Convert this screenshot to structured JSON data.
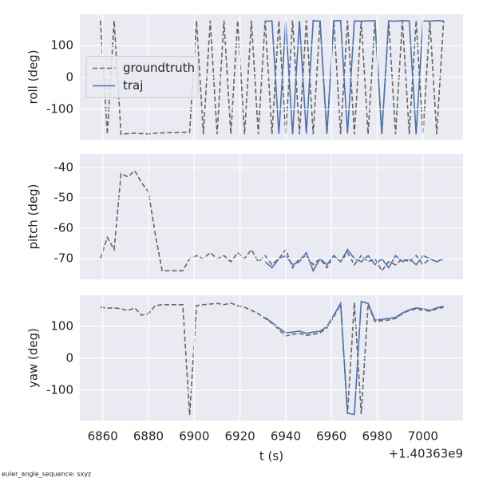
{
  "chart_data": [
    {
      "type": "line",
      "ylabel": "roll (deg)",
      "legend": "center left",
      "grid": true,
      "xlim": [
        6850,
        7017.5
      ],
      "xticks": [
        6860,
        6880,
        6900,
        6920,
        6940,
        6960,
        6980,
        7000
      ],
      "ylim": [
        -195,
        197.5
      ],
      "yticks": [
        -100,
        0,
        100
      ],
      "x": [
        6859,
        6862,
        6865,
        6868,
        6871,
        6874,
        6877,
        6880,
        6883,
        6886,
        6889,
        6892,
        6895,
        6898,
        6901,
        6904,
        6907,
        6910,
        6913,
        6916,
        6919,
        6922,
        6925,
        6928,
        6931,
        6934,
        6937,
        6940,
        6943,
        6946,
        6949,
        6952,
        6955,
        6958,
        6961,
        6964,
        6967,
        6970,
        6973,
        6976,
        6979,
        6982,
        6985,
        6988,
        6991,
        6994,
        6997,
        7000,
        7003,
        7006,
        7009
      ],
      "series": [
        {
          "name": "groundtruth",
          "color": "#666666",
          "linestyle": "dashed",
          "values": [
            178,
            -178,
            178,
            -178,
            -176,
            -175,
            -176,
            -177,
            -175,
            -174,
            -173,
            -173,
            -172,
            -172,
            178,
            -178,
            178,
            -178,
            178,
            -178,
            178,
            -178,
            178,
            -178,
            178,
            -178,
            178,
            -178,
            178,
            -178,
            178,
            -178,
            178,
            -178,
            178,
            -178,
            178,
            -178,
            178,
            -178,
            178,
            -178,
            178,
            -178,
            178,
            -178,
            178,
            -178,
            178,
            -178,
            178
          ]
        },
        {
          "name": "traj",
          "color": "#4c72b0",
          "linestyle": "solid",
          "values": [
            null,
            null,
            null,
            null,
            null,
            null,
            null,
            null,
            null,
            null,
            null,
            null,
            null,
            null,
            null,
            null,
            null,
            null,
            null,
            null,
            null,
            null,
            null,
            null,
            176,
            177,
            -177,
            176,
            -178,
            177,
            -176,
            178,
            176,
            -177,
            177,
            178,
            -176,
            177,
            176,
            177,
            178,
            -177,
            177,
            176,
            178,
            177,
            -178,
            177,
            176,
            178,
            177
          ]
        }
      ]
    },
    {
      "type": "line",
      "ylabel": "pitch (deg)",
      "grid": true,
      "xlim": [
        6850,
        7017.5
      ],
      "xticks": [
        6860,
        6880,
        6900,
        6920,
        6940,
        6960,
        6980,
        7000
      ],
      "ylim": [
        -76.8,
        -35.5
      ],
      "yticks": [
        -70,
        -60,
        -50,
        -40
      ],
      "x": [
        6859,
        6862,
        6865,
        6868,
        6871,
        6874,
        6877,
        6880,
        6883,
        6886,
        6889,
        6892,
        6895,
        6898,
        6901,
        6904,
        6907,
        6910,
        6913,
        6916,
        6919,
        6922,
        6925,
        6928,
        6931,
        6934,
        6937,
        6940,
        6943,
        6946,
        6949,
        6952,
        6955,
        6958,
        6961,
        6964,
        6967,
        6970,
        6973,
        6976,
        6979,
        6982,
        6985,
        6988,
        6991,
        6994,
        6997,
        7000,
        7003,
        7006,
        7009
      ],
      "series": [
        {
          "name": "groundtruth",
          "color": "#666666",
          "linestyle": "dashed",
          "values": [
            -70,
            -63,
            -67,
            -42,
            -43,
            -41,
            -45,
            -48,
            -62,
            -74,
            -74,
            -74,
            -74,
            -70,
            -69,
            -70,
            -68,
            -70,
            -69,
            -71,
            -68,
            -70,
            -67,
            -71,
            -69,
            -72,
            -70,
            -67,
            -73,
            -70,
            -69,
            -72,
            -70,
            -73,
            -69,
            -71,
            -68,
            -72,
            -69,
            -71,
            -70,
            -74,
            -71,
            -72,
            -70,
            -71,
            -69,
            -72,
            -70,
            -71,
            -70
          ]
        },
        {
          "name": "traj",
          "color": "#4c72b0",
          "linestyle": "solid",
          "values": [
            null,
            null,
            null,
            null,
            null,
            null,
            null,
            null,
            null,
            null,
            null,
            null,
            null,
            null,
            null,
            null,
            null,
            null,
            null,
            null,
            null,
            null,
            null,
            null,
            -71,
            -73,
            -70,
            -69,
            -72,
            -71,
            -68,
            -74,
            -70,
            -72,
            -69,
            -71,
            -67,
            -70,
            -71,
            -69,
            -72,
            -70,
            -73,
            -69,
            -71,
            -70,
            -72,
            -69,
            -70,
            -71,
            -70
          ]
        }
      ]
    },
    {
      "type": "line",
      "ylabel": "yaw (deg)",
      "xlabel": "t (s)",
      "x_offset_label": "+1.40363e9",
      "grid": true,
      "xlim": [
        6850,
        7017.5
      ],
      "xticks": [
        6860,
        6880,
        6900,
        6920,
        6940,
        6960,
        6980,
        7000
      ],
      "ylim": [
        -195,
        197.5
      ],
      "yticks": [
        -100,
        0,
        100
      ],
      "x": [
        6859,
        6862,
        6865,
        6868,
        6871,
        6874,
        6877,
        6880,
        6883,
        6886,
        6889,
        6892,
        6895,
        6898,
        6901,
        6904,
        6907,
        6910,
        6913,
        6916,
        6919,
        6922,
        6925,
        6928,
        6931,
        6934,
        6937,
        6940,
        6943,
        6946,
        6949,
        6952,
        6955,
        6958,
        6961,
        6964,
        6967,
        6970,
        6973,
        6976,
        6979,
        6982,
        6985,
        6988,
        6991,
        6994,
        6997,
        7000,
        7003,
        7006,
        7009
      ],
      "series": [
        {
          "name": "groundtruth",
          "color": "#666666",
          "linestyle": "dashed",
          "values": [
            160,
            157,
            158,
            155,
            150,
            158,
            135,
            140,
            165,
            168,
            168,
            168,
            168,
            -178,
            165,
            168,
            170,
            172,
            168,
            173,
            165,
            160,
            150,
            140,
            125,
            110,
            90,
            70,
            75,
            78,
            72,
            75,
            80,
            95,
            130,
            170,
            -175,
            175,
            -175,
            170,
            115,
            118,
            120,
            125,
            140,
            150,
            155,
            150,
            148,
            155,
            160
          ]
        },
        {
          "name": "traj",
          "color": "#4c72b0",
          "linestyle": "solid",
          "values": [
            null,
            null,
            null,
            null,
            null,
            null,
            null,
            null,
            null,
            null,
            null,
            null,
            null,
            null,
            null,
            null,
            null,
            null,
            null,
            null,
            null,
            null,
            null,
            null,
            128,
            112,
            95,
            80,
            82,
            85,
            78,
            82,
            85,
            100,
            135,
            172,
            -172,
            -176,
            178,
            172,
            120,
            122,
            125,
            128,
            142,
            152,
            158,
            155,
            150,
            158,
            163
          ]
        }
      ]
    }
  ],
  "footer": "euler_angle_sequence: sxyz"
}
